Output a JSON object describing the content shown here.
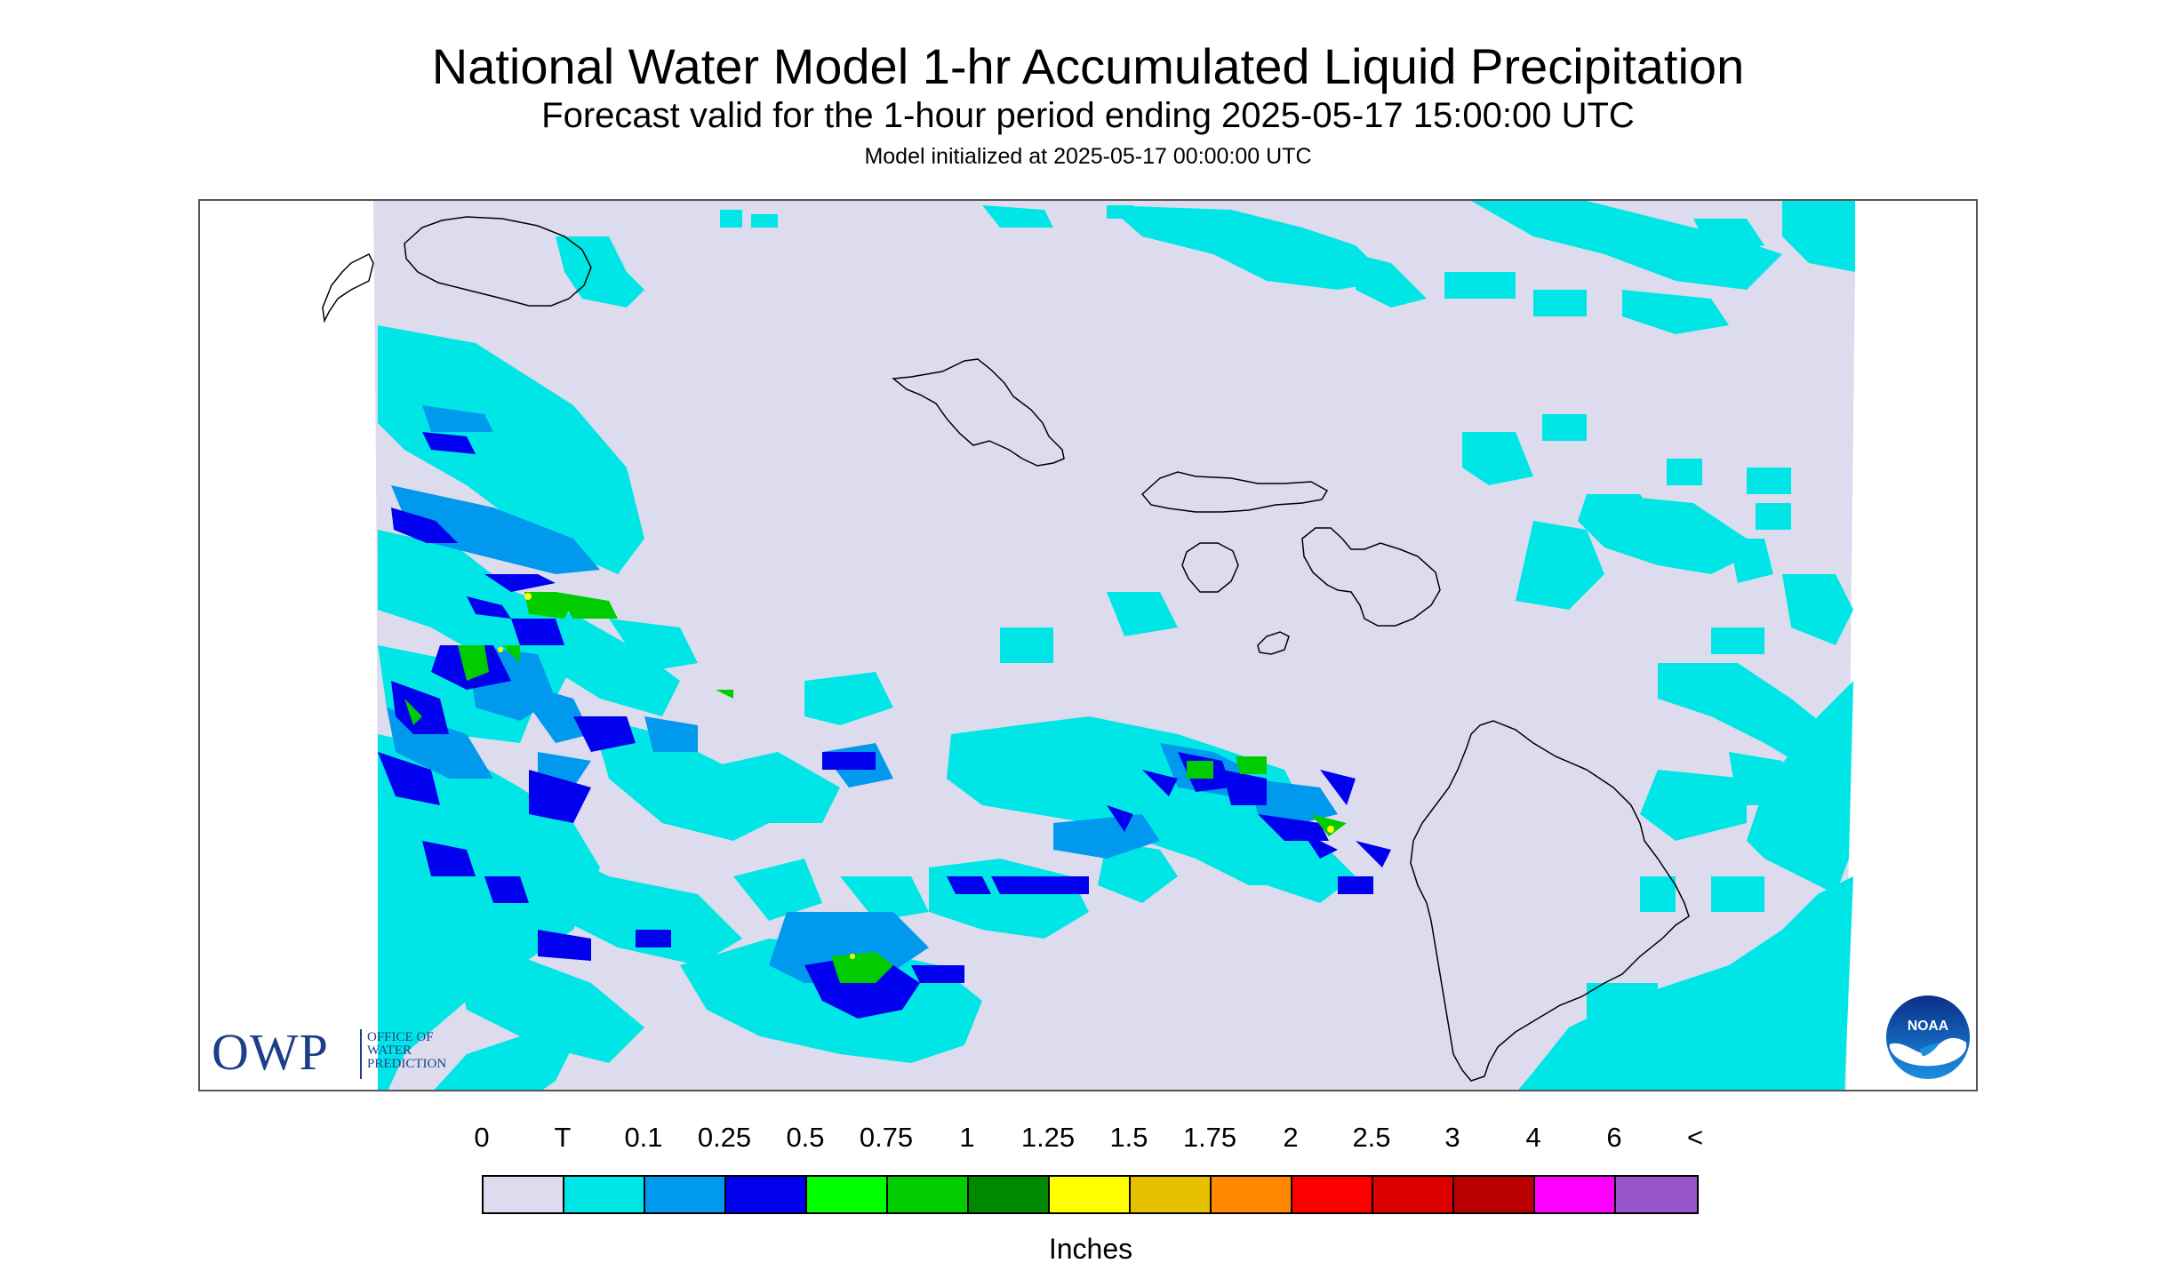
{
  "header": {
    "title": "National Water Model 1-hr Accumulated Liquid Precipitation",
    "subtitle": "Forecast valid for the 1-hour period ending 2025-05-17 15:00:00 UTC",
    "init_text": "Model initialized at 2025-05-17 00:00:00 UTC"
  },
  "map": {
    "background_color": "#dcdcee",
    "coastline_color": "#000000",
    "islands": [
      "Niihau",
      "Kauai",
      "Oahu",
      "Molokai",
      "Lanai",
      "Maui",
      "Kahoolawe",
      "Hawaii"
    ]
  },
  "logos": {
    "owp": {
      "letters": "OWP",
      "line1": "OFFICE OF",
      "line2": "WATER",
      "line3": "PREDICTION"
    },
    "noaa": {
      "text": "NOAA"
    }
  },
  "legend": {
    "labels": [
      "0",
      "T",
      "0.1",
      "0.25",
      "0.5",
      "0.75",
      "1",
      "1.25",
      "1.5",
      "1.75",
      "2",
      "2.5",
      "3",
      "4",
      "6",
      "<"
    ],
    "colors": [
      "#dcdcee",
      "#00e6e6",
      "#0099ee",
      "#0000ee",
      "#00ff00",
      "#00cc00",
      "#008800",
      "#ffff00",
      "#e6bf00",
      "#ff8800",
      "#ff0000",
      "#dd0000",
      "#bb0000",
      "#ff00ff",
      "#9955cc"
    ],
    "unit_label": "Inches"
  }
}
